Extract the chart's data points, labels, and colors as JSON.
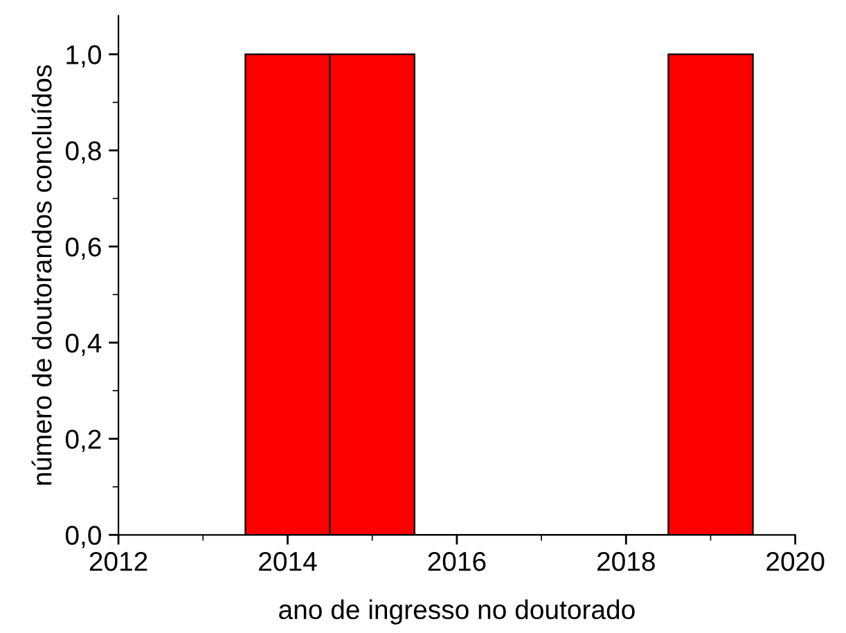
{
  "chart_data": {
    "type": "histogram",
    "xlabel": "ano de ingresso no doutorado",
    "ylabel": "número de doutorandos concluídos",
    "bins": [
      2013.5,
      2014.5,
      2015.5,
      2016.5,
      2017.5,
      2018.5,
      2019.5
    ],
    "values": [
      1,
      1,
      0,
      0,
      0,
      1
    ],
    "color": "#ff0000",
    "xlim": [
      2012,
      2020
    ],
    "xticks": [
      2012,
      2014,
      2016,
      2018,
      2020
    ],
    "ylim": [
      0,
      1.08
    ],
    "yticks": [
      {
        "value": 0,
        "label": "0,0"
      },
      {
        "value": 0.2,
        "label": "0,2"
      },
      {
        "value": 0.4,
        "label": "0,4"
      },
      {
        "value": 0.6,
        "label": "0,6"
      },
      {
        "value": 0.8,
        "label": "0,8"
      },
      {
        "value": 1.0,
        "label": "1,0"
      }
    ],
    "grid": false
  }
}
